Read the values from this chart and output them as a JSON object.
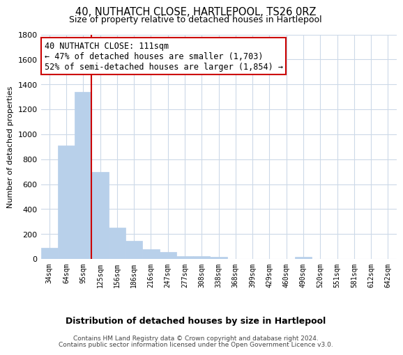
{
  "title": "40, NUTHATCH CLOSE, HARTLEPOOL, TS26 0RZ",
  "subtitle": "Size of property relative to detached houses in Hartlepool",
  "xlabel": "Distribution of detached houses by size in Hartlepool",
  "ylabel": "Number of detached properties",
  "categories": [
    "34sqm",
    "64sqm",
    "95sqm",
    "125sqm",
    "156sqm",
    "186sqm",
    "216sqm",
    "247sqm",
    "277sqm",
    "308sqm",
    "338sqm",
    "368sqm",
    "399sqm",
    "429sqm",
    "460sqm",
    "490sqm",
    "520sqm",
    "551sqm",
    "581sqm",
    "612sqm",
    "642sqm"
  ],
  "values": [
    90,
    910,
    1340,
    700,
    250,
    145,
    80,
    55,
    25,
    20,
    15,
    0,
    0,
    0,
    0,
    15,
    0,
    0,
    0,
    0,
    0
  ],
  "bar_color": "#b8d0ea",
  "bar_edge_color": "#b8d0ea",
  "vline_color": "#cc0000",
  "annotation_title": "40 NUTHATCH CLOSE: 111sqm",
  "annotation_line1": "← 47% of detached houses are smaller (1,703)",
  "annotation_line2": "52% of semi-detached houses are larger (1,854) →",
  "annotation_box_color": "#ffffff",
  "annotation_box_edge": "#cc0000",
  "ylim": [
    0,
    1800
  ],
  "yticks": [
    0,
    200,
    400,
    600,
    800,
    1000,
    1200,
    1400,
    1600,
    1800
  ],
  "footer_line1": "Contains HM Land Registry data © Crown copyright and database right 2024.",
  "footer_line2": "Contains public sector information licensed under the Open Government Licence v3.0.",
  "background_color": "#ffffff",
  "grid_color": "#ccd9e8"
}
